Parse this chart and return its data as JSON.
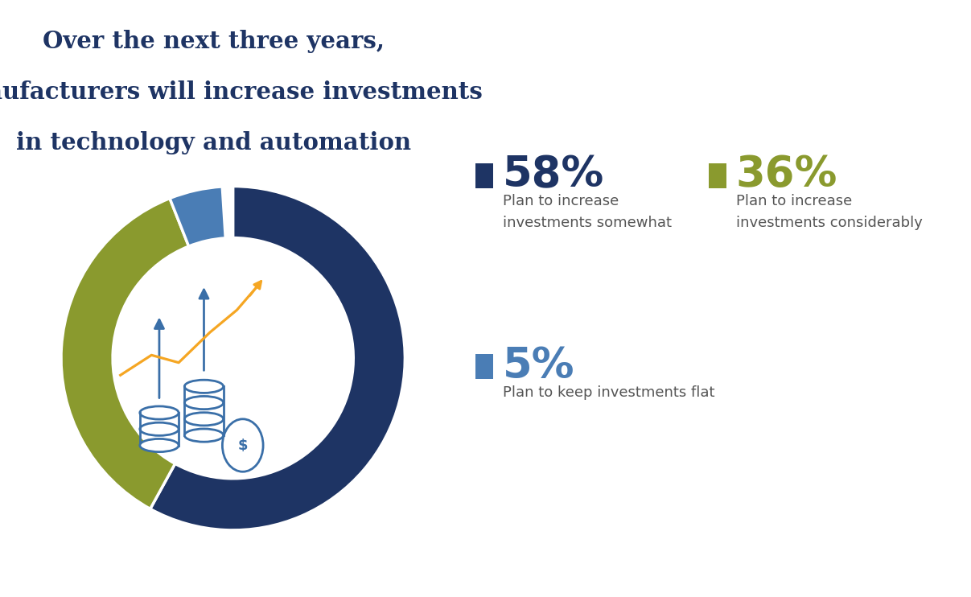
{
  "title_lines": [
    "Over the next three years,",
    "manufacturers will increase investments",
    "in technology and automation"
  ],
  "title_color": "#1e3464",
  "title_fontsize": 21,
  "background_color": "#ffffff",
  "donut_values": [
    58,
    36,
    5,
    1
  ],
  "donut_colors": [
    "#1e3464",
    "#8a9a2e",
    "#4a7db5",
    "#ffffff"
  ],
  "legend_items": [
    {
      "pct": "58%",
      "pct_color": "#1e3464",
      "square_color": "#1e3464",
      "desc": "Plan to increase\ninvestments somewhat",
      "desc_color": "#555555"
    },
    {
      "pct": "36%",
      "pct_color": "#8a9a2e",
      "square_color": "#8a9a2e",
      "desc": "Plan to increase\ninvestments considerably",
      "desc_color": "#555555"
    },
    {
      "pct": "5%",
      "pct_color": "#4a7db5",
      "square_color": "#4a7db5",
      "desc": "Plan to keep investments flat",
      "desc_color": "#555555"
    }
  ],
  "pct_fontsize": 38,
  "desc_fontsize": 13,
  "icon_color": "#3a6fa8",
  "icon_color2": "#f5a623"
}
